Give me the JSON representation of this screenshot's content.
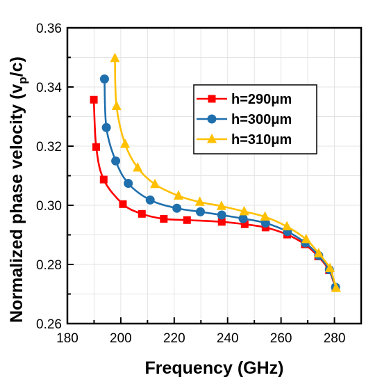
{
  "chart_data": {
    "type": "line",
    "title": "",
    "xlabel": "Frequency (GHz)",
    "ylabel_main": "Normalized phase velocity (v",
    "ylabel_sub": "p",
    "ylabel_tail": "/c)",
    "xlim": [
      180,
      290
    ],
    "ylim": [
      0.26,
      0.36
    ],
    "x_ticks": [
      180,
      200,
      220,
      240,
      260,
      280
    ],
    "x_tick_labels": [
      "180",
      "200",
      "220",
      "240",
      "260",
      "280"
    ],
    "y_ticks": [
      0.26,
      0.28,
      0.3,
      0.32,
      0.34,
      0.36
    ],
    "y_tick_labels": [
      "0.26",
      "0.28",
      "0.30",
      "0.32",
      "0.34",
      "0.36"
    ],
    "grid": true,
    "legend_position": "top-right",
    "series": [
      {
        "name": "h=290μm",
        "color": "#ff0000",
        "marker": "square",
        "x": [
          189.9,
          190.8,
          193.6,
          200.8,
          207.9,
          216.1,
          224.8,
          237.8,
          246.4,
          254.2,
          262.3,
          268.9,
          273.9,
          278.0,
          280.4
        ],
        "y": [
          0.3357,
          0.3197,
          0.3087,
          0.3004,
          0.2971,
          0.2954,
          0.295,
          0.2944,
          0.2936,
          0.2925,
          0.2901,
          0.2868,
          0.2827,
          0.278,
          0.272
        ]
      },
      {
        "name": "h=300μm",
        "color": "#1f6fad",
        "marker": "circle",
        "x": [
          193.9,
          194.6,
          198.1,
          202.8,
          211.0,
          221.0,
          229.8,
          237.8,
          245.8,
          254.2,
          262.4,
          269.1,
          274.1,
          278.1,
          280.4
        ],
        "y": [
          0.3427,
          0.3263,
          0.315,
          0.3074,
          0.3018,
          0.299,
          0.2978,
          0.2967,
          0.2955,
          0.294,
          0.2911,
          0.2873,
          0.283,
          0.2782,
          0.2723
        ]
      },
      {
        "name": "h=310μm",
        "color": "#ffc000",
        "marker": "triangle",
        "x": [
          197.8,
          198.4,
          201.6,
          206.3,
          212.8,
          221.6,
          229.6,
          237.7,
          246.2,
          254.0,
          262.2,
          269.4,
          274.1,
          278.3,
          280.6
        ],
        "y": [
          0.3497,
          0.3335,
          0.3207,
          0.3127,
          0.3071,
          0.3032,
          0.3011,
          0.2997,
          0.2979,
          0.2961,
          0.2928,
          0.2885,
          0.2837,
          0.2787,
          0.272
        ]
      }
    ]
  }
}
